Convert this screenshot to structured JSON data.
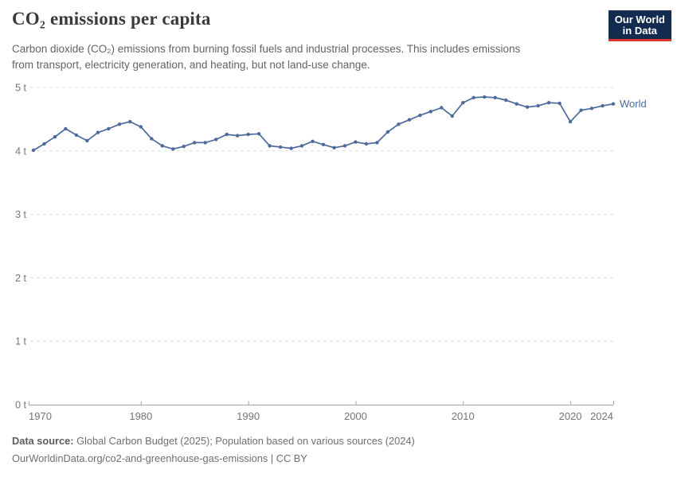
{
  "header": {
    "title": "CO₂ emissions per capita",
    "subtitle_line1": "Carbon dioxide (CO₂) emissions from burning fossil fuels and industrial processes. This includes emissions",
    "subtitle_line2": "from transport, electricity generation, and heating, but not land-use change.",
    "logo": {
      "line1": "Our World",
      "line2": "in Data",
      "bg_color": "#122B4E",
      "accent_color": "#D8352E"
    }
  },
  "chart_data": {
    "type": "line",
    "title": "CO₂ emissions per capita",
    "unit": "tonnes per person",
    "xlabel": "",
    "ylabel": "",
    "ylim": [
      0,
      5
    ],
    "grid": "horizontal-dashed",
    "legend_position": "end-of-line-label",
    "ytick_values": [
      0,
      1,
      2,
      3,
      4,
      5
    ],
    "ytick_labels": [
      "0 t",
      "1 t",
      "2 t",
      "3 t",
      "4 t",
      "5 t"
    ],
    "xtick_values": [
      1970,
      1980,
      1990,
      2000,
      2010,
      2020,
      2024
    ],
    "x": [
      1970,
      1971,
      1972,
      1973,
      1974,
      1975,
      1976,
      1977,
      1978,
      1979,
      1980,
      1981,
      1982,
      1983,
      1984,
      1985,
      1986,
      1987,
      1988,
      1989,
      1990,
      1991,
      1992,
      1993,
      1994,
      1995,
      1996,
      1997,
      1998,
      1999,
      2000,
      2001,
      2002,
      2003,
      2004,
      2005,
      2006,
      2007,
      2008,
      2009,
      2010,
      2011,
      2012,
      2013,
      2014,
      2015,
      2016,
      2017,
      2018,
      2019,
      2020,
      2021,
      2022,
      2023,
      2024
    ],
    "series": [
      {
        "name": "World",
        "color": "#4C6A9E",
        "values": [
          4.01,
          4.11,
          4.22,
          4.35,
          4.25,
          4.16,
          4.29,
          4.35,
          4.42,
          4.46,
          4.38,
          4.19,
          4.08,
          4.03,
          4.07,
          4.13,
          4.13,
          4.18,
          4.26,
          4.24,
          4.26,
          4.27,
          4.08,
          4.06,
          4.04,
          4.08,
          4.15,
          4.1,
          4.05,
          4.08,
          4.14,
          4.11,
          4.13,
          4.3,
          4.42,
          4.49,
          4.56,
          4.62,
          4.68,
          4.55,
          4.76,
          4.84,
          4.85,
          4.84,
          4.8,
          4.74,
          4.69,
          4.71,
          4.76,
          4.75,
          4.46,
          4.64,
          4.67,
          4.71,
          4.74
        ]
      }
    ],
    "colors": {
      "gridline": "#dcdcdc",
      "axis": "#a3a3a3",
      "tick_label": "#757575"
    }
  },
  "footer": {
    "datasource_label": "Data source:",
    "datasource_text": " Global Carbon Budget (2025); Population based on various sources (2024)",
    "license_line": "OurWorldinData.org/co2-and-greenhouse-gas-emissions | CC BY"
  }
}
